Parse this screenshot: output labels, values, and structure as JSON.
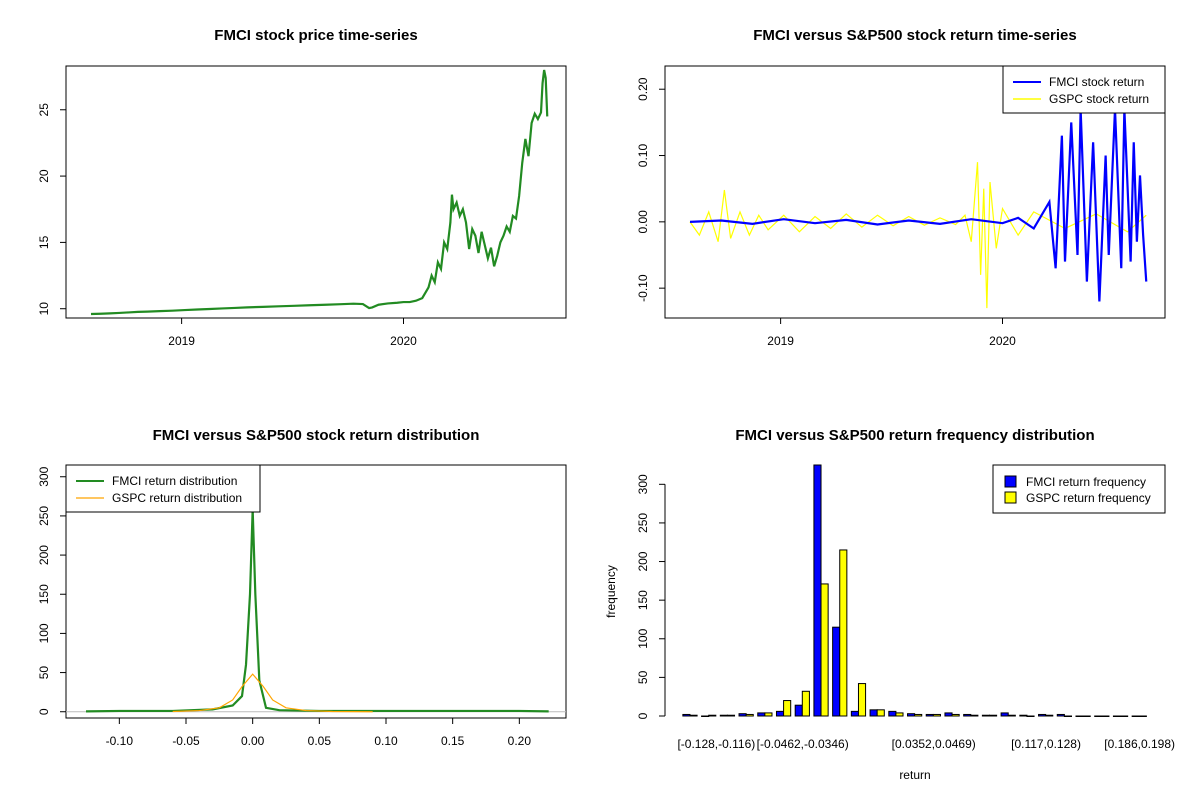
{
  "chart_data": [
    {
      "type": "line",
      "title": "FMCI stock price time-series",
      "xlabel": "",
      "ylabel": "",
      "x_tick_labels": [
        "2019",
        "2020"
      ],
      "y_ticks": [
        10,
        15,
        20,
        25
      ],
      "ylim": [
        9.3,
        28.3
      ],
      "series": [
        {
          "name": "FMCI price",
          "color": "#228B22",
          "points": [
            [
              0.0,
              9.6
            ],
            [
              0.03,
              9.62
            ],
            [
              0.06,
              9.65
            ],
            [
              0.09,
              9.68
            ],
            [
              0.12,
              9.72
            ],
            [
              0.15,
              9.76
            ],
            [
              0.18,
              9.78
            ],
            [
              0.22,
              9.82
            ],
            [
              0.26,
              9.85
            ],
            [
              0.3,
              9.9
            ],
            [
              0.34,
              9.94
            ],
            [
              0.38,
              9.98
            ],
            [
              0.42,
              10.02
            ],
            [
              0.46,
              10.06
            ],
            [
              0.5,
              10.1
            ],
            [
              0.55,
              10.14
            ],
            [
              0.6,
              10.18
            ],
            [
              0.65,
              10.22
            ],
            [
              0.7,
              10.26
            ],
            [
              0.75,
              10.3
            ],
            [
              0.8,
              10.34
            ],
            [
              0.84,
              10.38
            ],
            [
              0.87,
              10.35
            ],
            [
              0.89,
              10.05
            ],
            [
              0.9,
              10.1
            ],
            [
              0.92,
              10.3
            ],
            [
              0.95,
              10.4
            ],
            [
              0.98,
              10.45
            ],
            [
              1.0,
              10.5
            ],
            [
              1.02,
              10.5
            ],
            [
              1.04,
              10.6
            ],
            [
              1.06,
              10.8
            ],
            [
              1.08,
              11.6
            ],
            [
              1.09,
              12.5
            ],
            [
              1.1,
              12.0
            ],
            [
              1.11,
              13.5
            ],
            [
              1.12,
              13.0
            ],
            [
              1.13,
              15.0
            ],
            [
              1.14,
              14.5
            ],
            [
              1.15,
              16.5
            ],
            [
              1.155,
              18.6
            ],
            [
              1.16,
              17.5
            ],
            [
              1.17,
              18.0
            ],
            [
              1.18,
              17.0
            ],
            [
              1.19,
              17.5
            ],
            [
              1.2,
              16.5
            ],
            [
              1.21,
              14.5
            ],
            [
              1.22,
              16.0
            ],
            [
              1.23,
              15.5
            ],
            [
              1.24,
              14.2
            ],
            [
              1.25,
              15.8
            ],
            [
              1.26,
              14.8
            ],
            [
              1.27,
              13.8
            ],
            [
              1.28,
              14.6
            ],
            [
              1.29,
              13.2
            ],
            [
              1.3,
              14.0
            ],
            [
              1.31,
              15.0
            ],
            [
              1.32,
              15.5
            ],
            [
              1.33,
              16.2
            ],
            [
              1.34,
              15.8
            ],
            [
              1.35,
              17.0
            ],
            [
              1.36,
              16.8
            ],
            [
              1.37,
              18.5
            ],
            [
              1.38,
              21.0
            ],
            [
              1.39,
              22.8
            ],
            [
              1.4,
              21.5
            ],
            [
              1.41,
              24.0
            ],
            [
              1.42,
              24.7
            ],
            [
              1.43,
              24.3
            ],
            [
              1.44,
              24.8
            ],
            [
              1.445,
              27.0
            ],
            [
              1.45,
              28.0
            ],
            [
              1.455,
              27.4
            ],
            [
              1.46,
              24.5
            ]
          ]
        }
      ]
    },
    {
      "type": "line",
      "title": "FMCI versus S&P500 stock return time-series",
      "xlabel": "",
      "ylabel": "",
      "x_tick_labels": [
        "2019",
        "2020"
      ],
      "y_ticks": [
        "-0.10",
        "0.00",
        "0.10",
        "0.20"
      ],
      "ylim": [
        -0.145,
        0.235
      ],
      "legend": {
        "position": "top-right",
        "entries": [
          "FMCI stock return",
          "GSPC stock return"
        ]
      },
      "series": [
        {
          "name": "FMCI stock return",
          "color": "#0000FF",
          "points": [
            [
              0.0,
              0.0
            ],
            [
              0.1,
              0.002
            ],
            [
              0.2,
              -0.003
            ],
            [
              0.3,
              0.004
            ],
            [
              0.4,
              -0.002
            ],
            [
              0.5,
              0.003
            ],
            [
              0.6,
              -0.004
            ],
            [
              0.7,
              0.002
            ],
            [
              0.8,
              -0.003
            ],
            [
              0.9,
              0.004
            ],
            [
              1.0,
              -0.002
            ],
            [
              1.05,
              0.006
            ],
            [
              1.1,
              -0.01
            ],
            [
              1.15,
              0.03
            ],
            [
              1.17,
              -0.07
            ],
            [
              1.19,
              0.13
            ],
            [
              1.2,
              -0.06
            ],
            [
              1.22,
              0.15
            ],
            [
              1.24,
              -0.05
            ],
            [
              1.25,
              0.17
            ],
            [
              1.27,
              -0.09
            ],
            [
              1.29,
              0.12
            ],
            [
              1.31,
              -0.12
            ],
            [
              1.33,
              0.1
            ],
            [
              1.34,
              -0.05
            ],
            [
              1.36,
              0.17
            ],
            [
              1.38,
              -0.07
            ],
            [
              1.39,
              0.17
            ],
            [
              1.41,
              -0.06
            ],
            [
              1.42,
              0.12
            ],
            [
              1.43,
              -0.03
            ],
            [
              1.44,
              0.07
            ],
            [
              1.45,
              -0.02
            ],
            [
              1.46,
              -0.09
            ]
          ]
        },
        {
          "name": "GSPC stock return",
          "color": "#FFFF00",
          "points": [
            [
              0.0,
              0.0
            ],
            [
              0.03,
              -0.02
            ],
            [
              0.06,
              0.015
            ],
            [
              0.09,
              -0.03
            ],
            [
              0.11,
              0.048
            ],
            [
              0.13,
              -0.025
            ],
            [
              0.16,
              0.015
            ],
            [
              0.19,
              -0.02
            ],
            [
              0.22,
              0.01
            ],
            [
              0.25,
              -0.012
            ],
            [
              0.3,
              0.01
            ],
            [
              0.35,
              -0.015
            ],
            [
              0.4,
              0.008
            ],
            [
              0.45,
              -0.01
            ],
            [
              0.5,
              0.012
            ],
            [
              0.55,
              -0.008
            ],
            [
              0.6,
              0.01
            ],
            [
              0.65,
              -0.006
            ],
            [
              0.7,
              0.008
            ],
            [
              0.75,
              -0.005
            ],
            [
              0.8,
              0.006
            ],
            [
              0.85,
              -0.004
            ],
            [
              0.88,
              0.01
            ],
            [
              0.9,
              -0.03
            ],
            [
              0.92,
              0.09
            ],
            [
              0.93,
              -0.08
            ],
            [
              0.94,
              0.05
            ],
            [
              0.95,
              -0.13
            ],
            [
              0.96,
              0.06
            ],
            [
              0.98,
              -0.04
            ],
            [
              1.0,
              0.02
            ],
            [
              1.05,
              -0.02
            ],
            [
              1.1,
              0.015
            ],
            [
              1.2,
              -0.01
            ],
            [
              1.3,
              0.012
            ],
            [
              1.4,
              -0.015
            ],
            [
              1.46,
              0.01
            ]
          ]
        }
      ]
    },
    {
      "type": "line",
      "title": "FMCI versus S&P500 stock return distribution",
      "xlabel": "",
      "ylabel": "",
      "x_ticks": [
        "-0.10",
        "-0.05",
        "0.00",
        "0.05",
        "0.10",
        "0.15",
        "0.20"
      ],
      "y_ticks": [
        0,
        50,
        100,
        150,
        200,
        250,
        300
      ],
      "xlim": [
        -0.14,
        0.235
      ],
      "ylim": [
        -8,
        315
      ],
      "legend": {
        "position": "top-left",
        "entries": [
          "FMCI return distribution",
          "GSPC return distribution"
        ]
      },
      "series": [
        {
          "name": "FMCI return distribution",
          "color": "#228B22",
          "points": [
            [
              -0.125,
              0.5
            ],
            [
              -0.1,
              1
            ],
            [
              -0.06,
              1
            ],
            [
              -0.03,
              3
            ],
            [
              -0.015,
              8
            ],
            [
              -0.008,
              20
            ],
            [
              -0.005,
              60
            ],
            [
              -0.002,
              150
            ],
            [
              0.0,
              258
            ],
            [
              0.002,
              150
            ],
            [
              0.005,
              40
            ],
            [
              0.01,
              5
            ],
            [
              0.02,
              2
            ],
            [
              0.05,
              1
            ],
            [
              0.1,
              1
            ],
            [
              0.15,
              1
            ],
            [
              0.2,
              1
            ],
            [
              0.222,
              0.5
            ]
          ]
        },
        {
          "name": "GSPC return distribution",
          "color": "#FFA500",
          "points": [
            [
              -0.06,
              0.3
            ],
            [
              -0.04,
              1.5
            ],
            [
              -0.025,
              5
            ],
            [
              -0.015,
              15
            ],
            [
              -0.008,
              32
            ],
            [
              0.0,
              48
            ],
            [
              0.008,
              32
            ],
            [
              0.015,
              15
            ],
            [
              0.025,
              5
            ],
            [
              0.04,
              1.5
            ],
            [
              0.06,
              0.3
            ],
            [
              0.09,
              0
            ]
          ]
        }
      ]
    },
    {
      "type": "bar",
      "title": "FMCI versus S&P500 return frequency distribution",
      "xlabel": "return",
      "ylabel": "frequency",
      "x_tick_labels": [
        "[-0.128,-0.116)",
        "[-0.0462,-0.0346)",
        "[0.0352,0.0469)",
        "[0.117,0.128)",
        "[0.186,0.198)"
      ],
      "y_ticks": [
        0,
        50,
        100,
        150,
        200,
        250,
        300
      ],
      "ylim": [
        0,
        325
      ],
      "legend": {
        "position": "top-right",
        "entries": [
          "FMCI return frequency",
          "GSPC return frequency"
        ]
      },
      "series": [
        {
          "name": "FMCI return frequency",
          "color": "#0000FF",
          "values": [
            2,
            0,
            1,
            3,
            4,
            6,
            14,
            325,
            115,
            6,
            8,
            6,
            3,
            2,
            4,
            2,
            1,
            4,
            1,
            2,
            2,
            0,
            0,
            0,
            0
          ]
        },
        {
          "name": "GSPC return frequency",
          "color": "#FFFF00",
          "values": [
            1,
            1,
            1,
            2,
            4,
            20,
            32,
            171,
            215,
            42,
            8,
            4,
            2,
            2,
            2,
            1,
            1,
            1,
            0,
            1,
            0,
            0,
            0,
            0,
            0
          ]
        }
      ]
    }
  ]
}
